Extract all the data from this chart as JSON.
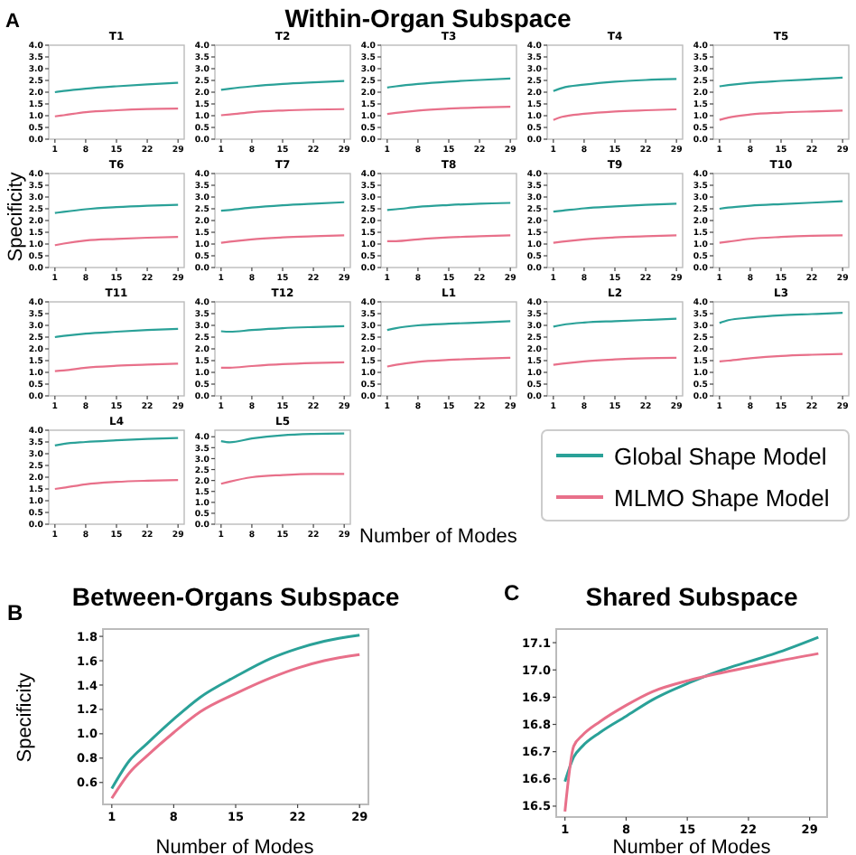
{
  "chart_data": [
    {
      "type": "line",
      "title": "T1",
      "annotations": [
        "A",
        "Within-Organ Subspace"
      ],
      "x": [
        1,
        3,
        8,
        15,
        22,
        29
      ],
      "xlim": [
        -0.4,
        30.4
      ],
      "xticks": [
        1,
        8,
        15,
        22,
        29
      ],
      "ylim": [
        0,
        4
      ],
      "yticks": [
        {
          "value": 0,
          "label": "0.0"
        },
        0.5,
        {
          "value": 1,
          "label": "1.0"
        },
        1.5,
        {
          "value": 2,
          "label": "2.0"
        },
        2.5,
        {
          "value": 3,
          "label": "3.0"
        },
        3.5,
        {
          "value": 4,
          "label": "4.0"
        }
      ],
      "grid": false,
      "series": [
        {
          "color": "#2aa198",
          "values": [
            2.0,
            2.05,
            2.15,
            2.25,
            2.33,
            2.4
          ]
        },
        {
          "color": "#e8708a",
          "values": [
            0.97,
            1.02,
            1.15,
            1.23,
            1.28,
            1.3
          ]
        }
      ]
    },
    {
      "type": "line",
      "title": "T2",
      "x": [
        1,
        3,
        8,
        15,
        22,
        29
      ],
      "xlim": [
        -0.4,
        30.4
      ],
      "xticks": [
        1,
        8,
        15,
        22,
        29
      ],
      "ylim": [
        0,
        4
      ],
      "yticks": [
        {
          "value": 0,
          "label": "0.0"
        },
        0.5,
        {
          "value": 1,
          "label": "1.0"
        },
        1.5,
        {
          "value": 2,
          "label": "2.0"
        },
        2.5,
        {
          "value": 3,
          "label": "3.0"
        },
        3.5,
        {
          "value": 4,
          "label": "4.0"
        }
      ],
      "grid": false,
      "series": [
        {
          "color": "#2aa198",
          "values": [
            2.1,
            2.15,
            2.25,
            2.35,
            2.42,
            2.48
          ]
        },
        {
          "color": "#e8708a",
          "values": [
            1.02,
            1.05,
            1.15,
            1.22,
            1.26,
            1.28
          ]
        }
      ]
    },
    {
      "type": "line",
      "title": "T3",
      "x": [
        1,
        3,
        8,
        15,
        22,
        29
      ],
      "xlim": [
        -0.4,
        30.4
      ],
      "xticks": [
        1,
        8,
        15,
        22,
        29
      ],
      "ylim": [
        0,
        4
      ],
      "yticks": [
        {
          "value": 0,
          "label": "0.0"
        },
        0.5,
        {
          "value": 1,
          "label": "1.0"
        },
        1.5,
        {
          "value": 2,
          "label": "2.0"
        },
        2.5,
        {
          "value": 3,
          "label": "3.0"
        },
        3.5,
        {
          "value": 4,
          "label": "4.0"
        }
      ],
      "grid": false,
      "series": [
        {
          "color": "#2aa198",
          "values": [
            2.2,
            2.25,
            2.35,
            2.45,
            2.52,
            2.58
          ]
        },
        {
          "color": "#e8708a",
          "values": [
            1.07,
            1.12,
            1.22,
            1.3,
            1.35,
            1.38
          ]
        }
      ]
    },
    {
      "type": "line",
      "title": "T4",
      "x": [
        1,
        3,
        8,
        15,
        22,
        29
      ],
      "xlim": [
        -0.4,
        30.4
      ],
      "xticks": [
        1,
        8,
        15,
        22,
        29
      ],
      "ylim": [
        0,
        4
      ],
      "yticks": [
        {
          "value": 0,
          "label": "0.0"
        },
        0.5,
        {
          "value": 1,
          "label": "1.0"
        },
        1.5,
        {
          "value": 2,
          "label": "2.0"
        },
        2.5,
        {
          "value": 3,
          "label": "3.0"
        },
        3.5,
        {
          "value": 4,
          "label": "4.0"
        }
      ],
      "grid": false,
      "series": [
        {
          "color": "#2aa198",
          "values": [
            2.05,
            2.18,
            2.32,
            2.45,
            2.52,
            2.56
          ]
        },
        {
          "color": "#e8708a",
          "values": [
            0.82,
            0.95,
            1.08,
            1.18,
            1.23,
            1.27
          ]
        }
      ]
    },
    {
      "type": "line",
      "title": "T5",
      "x": [
        1,
        3,
        8,
        15,
        22,
        29
      ],
      "xlim": [
        -0.4,
        30.4
      ],
      "xticks": [
        1,
        8,
        15,
        22,
        29
      ],
      "ylim": [
        0,
        4
      ],
      "yticks": [
        {
          "value": 0,
          "label": "0.0"
        },
        0.5,
        {
          "value": 1,
          "label": "1.0"
        },
        1.5,
        {
          "value": 2,
          "label": "2.0"
        },
        2.5,
        {
          "value": 3,
          "label": "3.0"
        },
        3.5,
        {
          "value": 4,
          "label": "4.0"
        }
      ],
      "grid": false,
      "series": [
        {
          "color": "#2aa198",
          "values": [
            2.25,
            2.3,
            2.4,
            2.48,
            2.55,
            2.62
          ]
        },
        {
          "color": "#e8708a",
          "values": [
            0.82,
            0.92,
            1.05,
            1.13,
            1.18,
            1.22
          ]
        }
      ]
    },
    {
      "type": "line",
      "title": "T6",
      "x": [
        1,
        3,
        8,
        15,
        22,
        29
      ],
      "xlim": [
        -0.4,
        30.4
      ],
      "xticks": [
        1,
        8,
        15,
        22,
        29
      ],
      "ylim": [
        0,
        4
      ],
      "yticks": [
        {
          "value": 0,
          "label": "0.0"
        },
        0.5,
        {
          "value": 1,
          "label": "1.0"
        },
        1.5,
        {
          "value": 2,
          "label": "2.0"
        },
        2.5,
        {
          "value": 3,
          "label": "3.0"
        },
        3.5,
        {
          "value": 4,
          "label": "4.0"
        }
      ],
      "grid": false,
      "series": [
        {
          "color": "#2aa198",
          "values": [
            2.32,
            2.37,
            2.48,
            2.57,
            2.63,
            2.67
          ]
        },
        {
          "color": "#e8708a",
          "values": [
            0.95,
            1.02,
            1.15,
            1.22,
            1.27,
            1.3
          ]
        }
      ]
    },
    {
      "type": "line",
      "title": "T7",
      "x": [
        1,
        3,
        8,
        15,
        22,
        29
      ],
      "xlim": [
        -0.4,
        30.4
      ],
      "xticks": [
        1,
        8,
        15,
        22,
        29
      ],
      "ylim": [
        0,
        4
      ],
      "yticks": [
        {
          "value": 0,
          "label": "0.0"
        },
        0.5,
        {
          "value": 1,
          "label": "1.0"
        },
        1.5,
        {
          "value": 2,
          "label": "2.0"
        },
        2.5,
        {
          "value": 3,
          "label": "3.0"
        },
        3.5,
        {
          "value": 4,
          "label": "4.0"
        }
      ],
      "grid": false,
      "series": [
        {
          "color": "#2aa198",
          "values": [
            2.42,
            2.45,
            2.55,
            2.65,
            2.72,
            2.78
          ]
        },
        {
          "color": "#e8708a",
          "values": [
            1.05,
            1.1,
            1.2,
            1.28,
            1.33,
            1.37
          ]
        }
      ]
    },
    {
      "type": "line",
      "title": "T8",
      "x": [
        1,
        3,
        8,
        15,
        22,
        29
      ],
      "xlim": [
        -0.4,
        30.4
      ],
      "xticks": [
        1,
        8,
        15,
        22,
        29
      ],
      "ylim": [
        0,
        4
      ],
      "yticks": [
        {
          "value": 0,
          "label": "0.0"
        },
        0.5,
        {
          "value": 1,
          "label": "1.0"
        },
        1.5,
        {
          "value": 2,
          "label": "2.0"
        },
        2.5,
        {
          "value": 3,
          "label": "3.0"
        },
        3.5,
        {
          "value": 4,
          "label": "4.0"
        }
      ],
      "grid": false,
      "series": [
        {
          "color": "#2aa198",
          "values": [
            2.45,
            2.48,
            2.58,
            2.66,
            2.72,
            2.75
          ]
        },
        {
          "color": "#e8708a",
          "values": [
            1.12,
            1.12,
            1.2,
            1.28,
            1.33,
            1.37
          ]
        }
      ]
    },
    {
      "type": "line",
      "title": "T9",
      "x": [
        1,
        3,
        8,
        15,
        22,
        29
      ],
      "xlim": [
        -0.4,
        30.4
      ],
      "xticks": [
        1,
        8,
        15,
        22,
        29
      ],
      "ylim": [
        0,
        4
      ],
      "yticks": [
        {
          "value": 0,
          "label": "0.0"
        },
        0.5,
        {
          "value": 1,
          "label": "1.0"
        },
        1.5,
        {
          "value": 2,
          "label": "2.0"
        },
        2.5,
        {
          "value": 3,
          "label": "3.0"
        },
        3.5,
        {
          "value": 4,
          "label": "4.0"
        }
      ],
      "grid": false,
      "series": [
        {
          "color": "#2aa198",
          "values": [
            2.38,
            2.42,
            2.52,
            2.6,
            2.67,
            2.72
          ]
        },
        {
          "color": "#e8708a",
          "values": [
            1.05,
            1.1,
            1.2,
            1.28,
            1.33,
            1.37
          ]
        }
      ]
    },
    {
      "type": "line",
      "title": "T10",
      "x": [
        1,
        3,
        8,
        15,
        22,
        29
      ],
      "xlim": [
        -0.4,
        30.4
      ],
      "xticks": [
        1,
        8,
        15,
        22,
        29
      ],
      "ylim": [
        0,
        4
      ],
      "yticks": [
        {
          "value": 0,
          "label": "0.0"
        },
        0.5,
        {
          "value": 1,
          "label": "1.0"
        },
        1.5,
        {
          "value": 2,
          "label": "2.0"
        },
        2.5,
        {
          "value": 3,
          "label": "3.0"
        },
        3.5,
        {
          "value": 4,
          "label": "4.0"
        }
      ],
      "grid": false,
      "series": [
        {
          "color": "#2aa198",
          "values": [
            2.5,
            2.55,
            2.63,
            2.7,
            2.76,
            2.82
          ]
        },
        {
          "color": "#e8708a",
          "values": [
            1.05,
            1.1,
            1.22,
            1.3,
            1.35,
            1.37
          ]
        }
      ]
    },
    {
      "type": "line",
      "title": "T11",
      "ylabel": "Specificity",
      "x": [
        1,
        3,
        8,
        15,
        22,
        29
      ],
      "xlim": [
        -0.4,
        30.4
      ],
      "xticks": [
        1,
        8,
        15,
        22,
        29
      ],
      "ylim": [
        0,
        4
      ],
      "yticks": [
        {
          "value": 0,
          "label": "0.0"
        },
        0.5,
        {
          "value": 1,
          "label": "1.0"
        },
        1.5,
        {
          "value": 2,
          "label": "2.0"
        },
        2.5,
        {
          "value": 3,
          "label": "3.0"
        },
        3.5,
        {
          "value": 4,
          "label": "4.0"
        }
      ],
      "grid": false,
      "series": [
        {
          "color": "#2aa198",
          "values": [
            2.5,
            2.55,
            2.65,
            2.73,
            2.8,
            2.85
          ]
        },
        {
          "color": "#e8708a",
          "values": [
            1.05,
            1.08,
            1.2,
            1.28,
            1.33,
            1.37
          ]
        }
      ]
    },
    {
      "type": "line",
      "title": "T12",
      "x": [
        1,
        3,
        8,
        15,
        22,
        29
      ],
      "xlim": [
        -0.4,
        30.4
      ],
      "xticks": [
        1,
        8,
        15,
        22,
        29
      ],
      "ylim": [
        0,
        4
      ],
      "yticks": [
        {
          "value": 0,
          "label": "0.0"
        },
        0.5,
        {
          "value": 1,
          "label": "1.0"
        },
        1.5,
        {
          "value": 2,
          "label": "2.0"
        },
        2.5,
        {
          "value": 3,
          "label": "3.0"
        },
        3.5,
        {
          "value": 4,
          "label": "4.0"
        }
      ],
      "grid": false,
      "series": [
        {
          "color": "#2aa198",
          "values": [
            2.75,
            2.73,
            2.8,
            2.88,
            2.93,
            2.97
          ]
        },
        {
          "color": "#e8708a",
          "values": [
            1.2,
            1.2,
            1.27,
            1.35,
            1.4,
            1.43
          ]
        }
      ]
    },
    {
      "type": "line",
      "title": "L1",
      "x": [
        1,
        3,
        8,
        15,
        22,
        29
      ],
      "xlim": [
        -0.4,
        30.4
      ],
      "xticks": [
        1,
        8,
        15,
        22,
        29
      ],
      "ylim": [
        0,
        4
      ],
      "yticks": [
        {
          "value": 0,
          "label": "0.0"
        },
        0.5,
        {
          "value": 1,
          "label": "1.0"
        },
        1.5,
        {
          "value": 2,
          "label": "2.0"
        },
        2.5,
        {
          "value": 3,
          "label": "3.0"
        },
        3.5,
        {
          "value": 4,
          "label": "4.0"
        }
      ],
      "grid": false,
      "series": [
        {
          "color": "#2aa198",
          "values": [
            2.8,
            2.88,
            3.0,
            3.07,
            3.12,
            3.18
          ]
        },
        {
          "color": "#e8708a",
          "values": [
            1.25,
            1.32,
            1.45,
            1.53,
            1.58,
            1.62
          ]
        }
      ]
    },
    {
      "type": "line",
      "title": "L2",
      "x": [
        1,
        3,
        8,
        15,
        22,
        29
      ],
      "xlim": [
        -0.4,
        30.4
      ],
      "xticks": [
        1,
        8,
        15,
        22,
        29
      ],
      "ylim": [
        0,
        4
      ],
      "yticks": [
        {
          "value": 0,
          "label": "0.0"
        },
        0.5,
        {
          "value": 1,
          "label": "1.0"
        },
        1.5,
        {
          "value": 2,
          "label": "2.0"
        },
        2.5,
        {
          "value": 3,
          "label": "3.0"
        },
        3.5,
        {
          "value": 4,
          "label": "4.0"
        }
      ],
      "grid": false,
      "series": [
        {
          "color": "#2aa198",
          "values": [
            2.95,
            3.02,
            3.12,
            3.18,
            3.23,
            3.28
          ]
        },
        {
          "color": "#e8708a",
          "values": [
            1.32,
            1.37,
            1.47,
            1.55,
            1.6,
            1.62
          ]
        }
      ]
    },
    {
      "type": "line",
      "title": "L3",
      "x": [
        1,
        3,
        8,
        15,
        22,
        29
      ],
      "xlim": [
        -0.4,
        30.4
      ],
      "xticks": [
        1,
        8,
        15,
        22,
        29
      ],
      "ylim": [
        0,
        4
      ],
      "yticks": [
        {
          "value": 0,
          "label": "0.0"
        },
        0.5,
        {
          "value": 1,
          "label": "1.0"
        },
        1.5,
        {
          "value": 2,
          "label": "2.0"
        },
        2.5,
        {
          "value": 3,
          "label": "3.0"
        },
        3.5,
        {
          "value": 4,
          "label": "4.0"
        }
      ],
      "grid": false,
      "series": [
        {
          "color": "#2aa198",
          "values": [
            3.1,
            3.22,
            3.33,
            3.43,
            3.48,
            3.53
          ]
        },
        {
          "color": "#e8708a",
          "values": [
            1.47,
            1.5,
            1.6,
            1.7,
            1.75,
            1.78
          ]
        }
      ]
    },
    {
      "type": "line",
      "title": "L4",
      "x": [
        1,
        3,
        8,
        15,
        22,
        29
      ],
      "xlim": [
        -0.4,
        30.4
      ],
      "xticks": [
        1,
        8,
        15,
        22,
        29
      ],
      "ylim": [
        0,
        4
      ],
      "yticks": [
        {
          "value": 0,
          "label": "0.0"
        },
        0.5,
        {
          "value": 1,
          "label": "1.0"
        },
        1.5,
        {
          "value": 2,
          "label": "2.0"
        },
        2.5,
        {
          "value": 3,
          "label": "3.0"
        },
        3.5,
        {
          "value": 4,
          "label": "4.0"
        }
      ],
      "grid": false,
      "series": [
        {
          "color": "#2aa198",
          "values": [
            3.35,
            3.42,
            3.5,
            3.57,
            3.63,
            3.67
          ]
        },
        {
          "color": "#e8708a",
          "values": [
            1.5,
            1.55,
            1.7,
            1.8,
            1.85,
            1.88
          ]
        }
      ]
    },
    {
      "type": "line",
      "title": "L5",
      "xlabel": "Number of Modes",
      "legend": "right",
      "x": [
        1,
        3,
        8,
        15,
        22,
        29
      ],
      "xlim": [
        -0.4,
        30.4
      ],
      "xticks": [
        1,
        8,
        15,
        22,
        29
      ],
      "ylim": [
        0,
        4.3
      ],
      "yticks": [
        {
          "value": 0,
          "label": "0.0"
        },
        0.5,
        {
          "value": 1,
          "label": "1.0"
        },
        1.5,
        {
          "value": 2,
          "label": "2.0"
        },
        2.5,
        {
          "value": 3,
          "label": "3.0"
        },
        3.5,
        {
          "value": 4,
          "label": "4.0"
        }
      ],
      "grid": false,
      "series": [
        {
          "name": "Global Shape Model",
          "color": "#2aa198",
          "values": [
            3.8,
            3.75,
            3.92,
            4.07,
            4.13,
            4.15
          ]
        },
        {
          "name": "MLMO Shape Model",
          "color": "#e8708a",
          "values": [
            1.85,
            1.95,
            2.15,
            2.25,
            2.3,
            2.3
          ]
        }
      ]
    },
    {
      "type": "line",
      "title": "Between-Organs Subspace",
      "annotations": [
        "B"
      ],
      "xlabel": "Number of Modes",
      "ylabel": "Specificity",
      "x": [
        1,
        3,
        5,
        8,
        11,
        15,
        19,
        22,
        25,
        29
      ],
      "xlim": [
        0,
        30
      ],
      "xticks": [
        1,
        8,
        15,
        22,
        29
      ],
      "ylim": [
        0.42,
        1.86
      ],
      "yticks": [
        0.6,
        0.8,
        {
          "value": 1,
          "label": "1.0"
        },
        1.2,
        1.4,
        1.6,
        1.8
      ],
      "grid": false,
      "series": [
        {
          "color": "#2aa198",
          "values": [
            0.55,
            0.78,
            0.92,
            1.12,
            1.3,
            1.47,
            1.62,
            1.7,
            1.76,
            1.81
          ]
        },
        {
          "color": "#e8708a",
          "values": [
            0.47,
            0.68,
            0.82,
            1.01,
            1.18,
            1.33,
            1.46,
            1.54,
            1.6,
            1.65
          ]
        }
      ]
    },
    {
      "type": "line",
      "title": "Shared Subspace",
      "annotations": [
        "C"
      ],
      "xlabel": "Number of Modes",
      "x": [
        1,
        2,
        3,
        5,
        8,
        11,
        15,
        19,
        22,
        25,
        30
      ],
      "xlim": [
        0,
        31
      ],
      "xticks": [
        1,
        8,
        15,
        22,
        29
      ],
      "ylim": [
        16.46,
        17.15
      ],
      "yticks": [
        16.5,
        16.6,
        16.7,
        16.8,
        16.9,
        {
          "value": 17,
          "label": "17.0"
        },
        17.1
      ],
      "grid": false,
      "series": [
        {
          "color": "#2aa198",
          "values": [
            16.59,
            16.68,
            16.72,
            16.77,
            16.83,
            16.89,
            16.95,
            17.0,
            17.03,
            17.06,
            17.12
          ]
        },
        {
          "color": "#e8708a",
          "values": [
            16.48,
            16.72,
            16.76,
            16.81,
            16.87,
            16.92,
            16.96,
            16.99,
            17.01,
            17.03,
            17.06
          ]
        }
      ]
    }
  ]
}
